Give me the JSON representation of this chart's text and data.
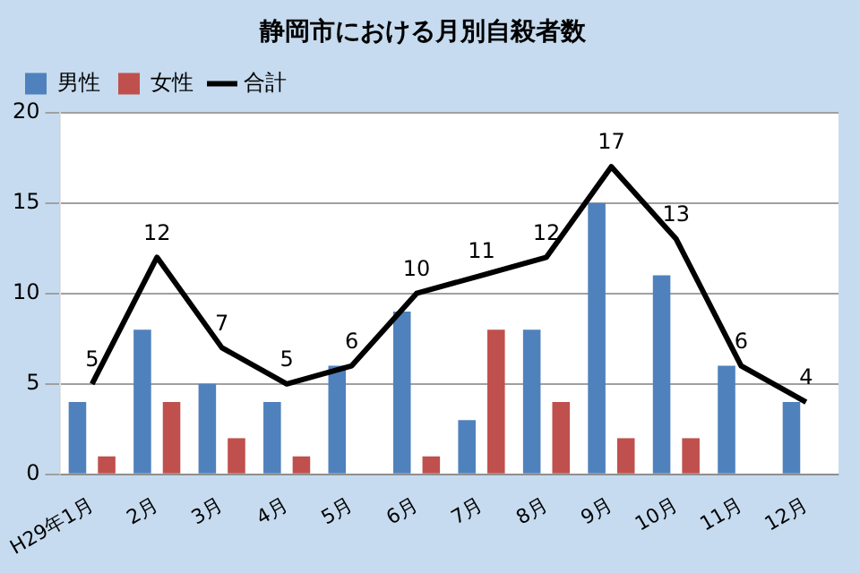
{
  "chart_data": {
    "type": "bar",
    "title": "静岡市における月別自殺者数",
    "categories": [
      "H29年1月",
      "2月",
      "3月",
      "4月",
      "5月",
      "6月",
      "7月",
      "8月",
      "9月",
      "10月",
      "11月",
      "12月"
    ],
    "series": [
      {
        "name": "男性",
        "color": "#4f81bd",
        "values": [
          4,
          8,
          5,
          4,
          6,
          9,
          3,
          8,
          15,
          11,
          6,
          4
        ]
      },
      {
        "name": "女性",
        "color": "#c0504d",
        "values": [
          1,
          4,
          2,
          1,
          0,
          1,
          8,
          4,
          2,
          2,
          0,
          0
        ]
      },
      {
        "name": "合計",
        "type": "line",
        "color": "#000000",
        "values": [
          5,
          12,
          7,
          5,
          6,
          10,
          11,
          12,
          17,
          13,
          6,
          4
        ],
        "value_labels": [
          "5",
          "12",
          "7",
          "5",
          "6",
          "10",
          "11",
          "12",
          "17",
          "13",
          "6",
          "4"
        ]
      }
    ],
    "ylim": [
      0,
      20
    ],
    "yticks": [
      0,
      5,
      10,
      15,
      20
    ],
    "grid": "y",
    "legend": "top left",
    "marker": "none"
  }
}
